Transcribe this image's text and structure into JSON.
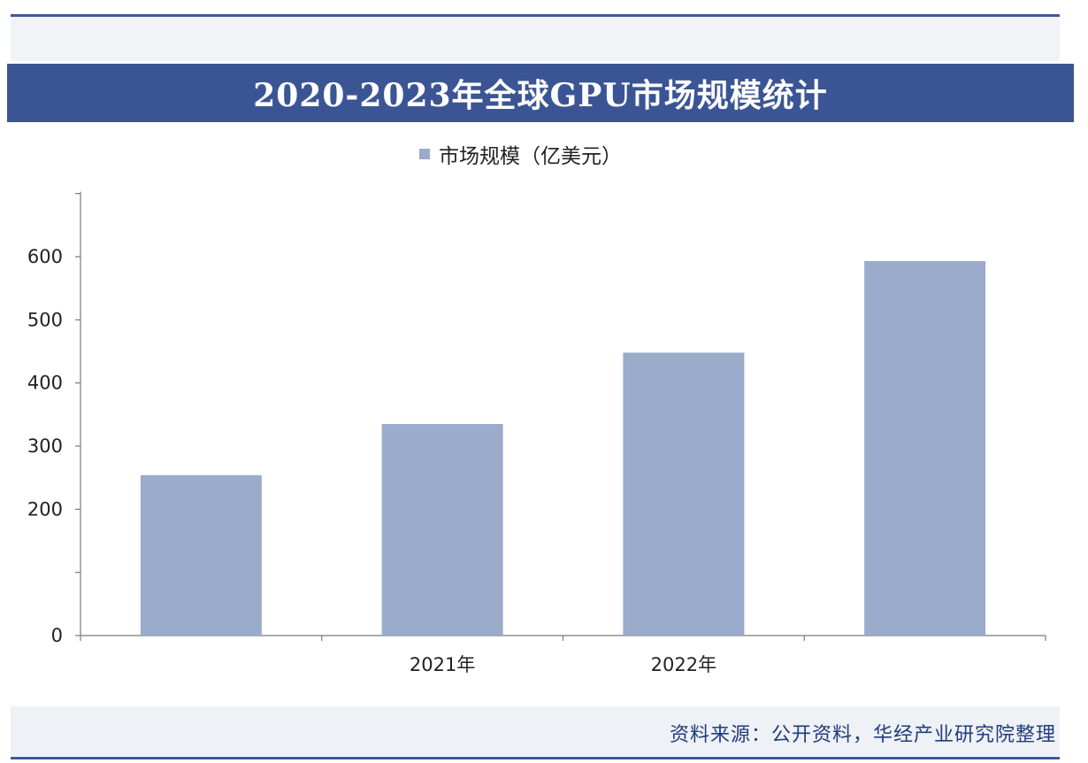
{
  "header": {
    "title": "2020-2023年全球GPU市场规模统计"
  },
  "legend": {
    "label": "市场规模（亿美元）",
    "swatch_color": "#9aabcb"
  },
  "footer": {
    "source": "资料来源：公开资料，华经产业研究院整理"
  },
  "colors": {
    "title_bar": "#3b5594",
    "bar": "#9aabcb",
    "source_text": "#1f3d7a"
  },
  "chart_data": {
    "type": "bar",
    "categories": [
      "",
      "2021年",
      "2022年",
      ""
    ],
    "series": [
      {
        "name": "市场规模（亿美元）",
        "values": [
          254,
          335,
          448,
          593
        ]
      }
    ],
    "title": "2020-2023年全球GPU市场规模统计",
    "xlabel": "",
    "ylabel": "",
    "ylim": [
      0,
      700
    ],
    "yticks": [
      0,
      100,
      200,
      300,
      400,
      500,
      600
    ],
    "ytick_labels": [
      "0",
      "",
      "200",
      "300",
      "400",
      "500",
      "600"
    ],
    "grid": false,
    "legend_position": "top-center"
  }
}
